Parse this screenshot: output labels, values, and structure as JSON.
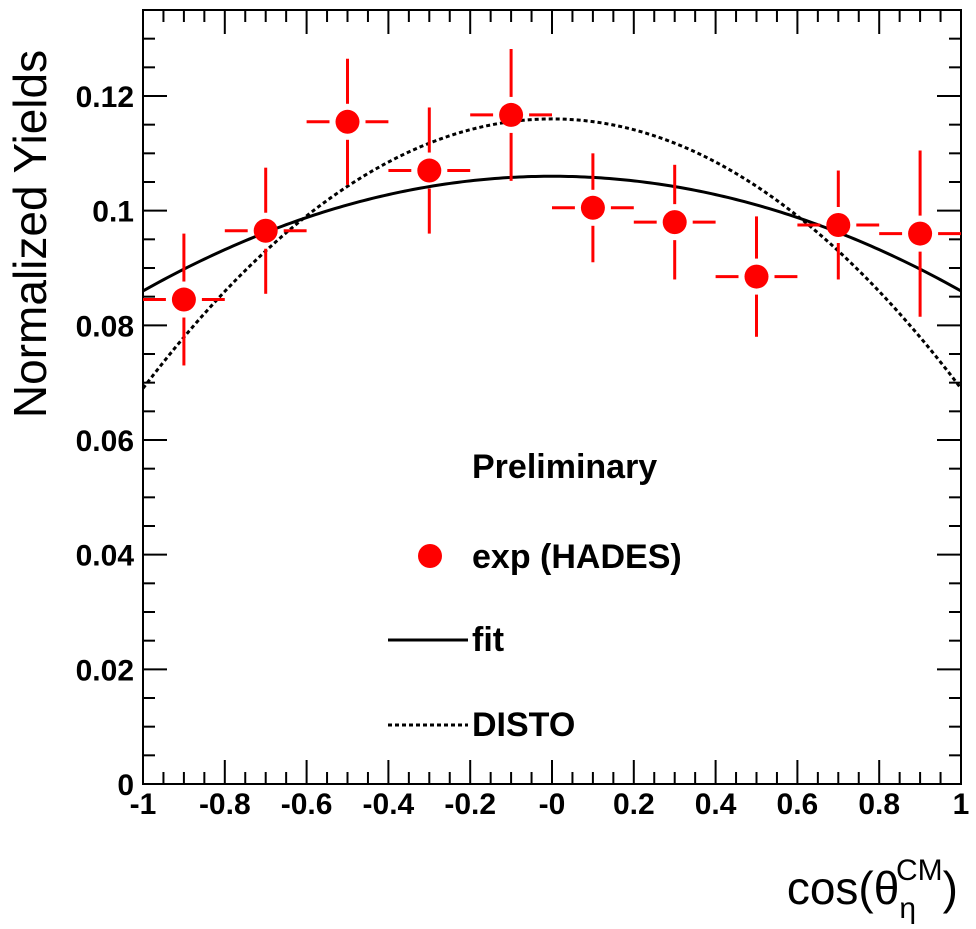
{
  "chart_data": {
    "type": "scatter",
    "xlabel": "cos(θ",
    "xlabel_sub": "η",
    "xlabel_sup": "CM",
    "xlabel_close": ")",
    "ylabel": "Normalized Yields",
    "xlim": [
      -1,
      1
    ],
    "ylim": [
      0,
      0.135
    ],
    "x_ticks": [
      -1,
      -0.8,
      -0.6,
      -0.4,
      -0.2,
      0,
      0.2,
      0.4,
      0.6,
      0.8,
      1
    ],
    "x_tick_labels": [
      "-1",
      "-0.8",
      "-0.6",
      "-0.4",
      "-0.2",
      "-0",
      "0.2",
      "0.4",
      "0.6",
      "0.8",
      "1"
    ],
    "y_ticks": [
      0,
      0.02,
      0.04,
      0.06,
      0.08,
      0.1,
      0.12
    ],
    "y_tick_labels": [
      "0",
      "0.02",
      "0.04",
      "0.06",
      "0.08",
      "0.1",
      "0.12"
    ],
    "annotation": "Preliminary",
    "legend": [
      {
        "label": "exp (HADES)",
        "style": "marker",
        "color": "#ff0000"
      },
      {
        "label": "fit",
        "style": "solid",
        "color": "#000000"
      },
      {
        "label": "DISTO",
        "style": "dotted",
        "color": "#000000"
      }
    ],
    "series": [
      {
        "name": "exp (HADES)",
        "color": "#ff0000",
        "x": [
          -0.9,
          -0.7,
          -0.5,
          -0.3,
          -0.1,
          0.1,
          0.3,
          0.5,
          0.7,
          0.9
        ],
        "y": [
          0.0845,
          0.0965,
          0.1155,
          0.107,
          0.1167,
          0.1005,
          0.098,
          0.0885,
          0.0975,
          0.096
        ],
        "x_err": 0.1,
        "y_err": [
          0.0115,
          0.011,
          0.011,
          0.011,
          0.0115,
          0.0095,
          0.01,
          0.0105,
          0.0095,
          0.0145
        ]
      },
      {
        "name": "fit",
        "color": "#000000",
        "curve": {
          "a": 0.106,
          "b": 0.02
        }
      },
      {
        "name": "DISTO",
        "color": "#000000",
        "curve": {
          "a": 0.116,
          "b": 0.047
        }
      }
    ]
  }
}
